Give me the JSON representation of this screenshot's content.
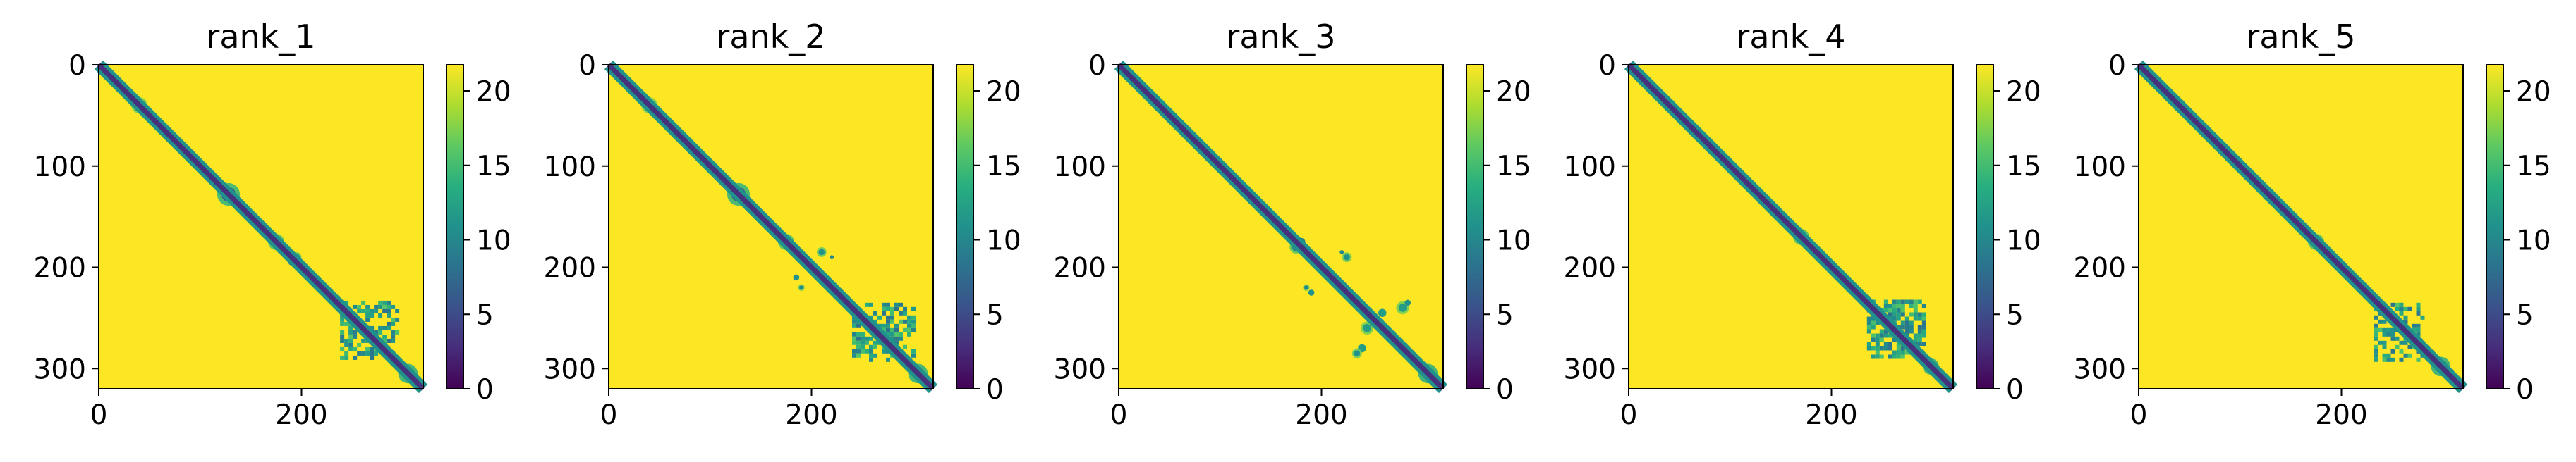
{
  "figure": {
    "colormap": "viridis",
    "background_color": "#ffffff"
  },
  "chart_data": [
    {
      "type": "heatmap",
      "title": "rank_1",
      "xlim": [
        0,
        320
      ],
      "ylim": [
        320,
        0
      ],
      "x_ticks": [
        0,
        200
      ],
      "x_tick_labels": [
        "0",
        "200"
      ],
      "y_ticks": [
        0,
        100,
        200,
        300
      ],
      "y_tick_labels": [
        "0",
        "100",
        "200",
        "300"
      ],
      "colorbar": {
        "range": [
          0,
          21.75
        ],
        "ticks": [
          0,
          5,
          10,
          15,
          20
        ],
        "tick_labels": [
          "0",
          "5",
          "10",
          "15",
          "20"
        ]
      },
      "background_value": 21.75,
      "diagonal_value": 3,
      "diagonal_band_width": 5,
      "features": [
        {
          "type": "blob",
          "center": [
            40,
            40
          ],
          "radius": 5,
          "value": 12
        },
        {
          "type": "blob",
          "center": [
            65,
            65
          ],
          "radius": 3,
          "value": 8
        },
        {
          "type": "blob",
          "center": [
            92,
            92
          ],
          "radius": 3,
          "value": 7
        },
        {
          "type": "blob",
          "center": [
            128,
            128
          ],
          "radius": 7,
          "value": 6
        },
        {
          "type": "blob",
          "center": [
            175,
            175
          ],
          "radius": 5,
          "value": 9
        },
        {
          "type": "blob",
          "center": [
            195,
            190
          ],
          "radius": 3,
          "value": 7
        },
        {
          "type": "block",
          "x": [
            238,
            295
          ],
          "y": [
            233,
            290
          ],
          "value": 12,
          "fill": 0.55
        },
        {
          "type": "blob",
          "center": [
            305,
            305
          ],
          "radius": 6,
          "value": 5
        }
      ]
    },
    {
      "type": "heatmap",
      "title": "rank_2",
      "xlim": [
        0,
        320
      ],
      "ylim": [
        320,
        0
      ],
      "x_ticks": [
        0,
        200
      ],
      "x_tick_labels": [
        "0",
        "200"
      ],
      "y_ticks": [
        0,
        100,
        200,
        300
      ],
      "y_tick_labels": [
        "0",
        "100",
        "200",
        "300"
      ],
      "colorbar": {
        "range": [
          0,
          21.75
        ],
        "ticks": [
          0,
          5,
          10,
          15,
          20
        ],
        "tick_labels": [
          "0",
          "5",
          "10",
          "15",
          "20"
        ]
      },
      "background_value": 21.75,
      "diagonal_value": 3,
      "diagonal_band_width": 5,
      "features": [
        {
          "type": "blob",
          "center": [
            40,
            40
          ],
          "radius": 5,
          "value": 12
        },
        {
          "type": "blob",
          "center": [
            128,
            128
          ],
          "radius": 7,
          "value": 6
        },
        {
          "type": "blob",
          "center": [
            175,
            175
          ],
          "radius": 5,
          "value": 9
        },
        {
          "type": "blob",
          "center": [
            210,
            185
          ],
          "radius": 3,
          "value": 11
        },
        {
          "type": "blob",
          "center": [
            190,
            220
          ],
          "radius": 2,
          "value": 10
        },
        {
          "type": "block",
          "x": [
            240,
            300
          ],
          "y": [
            235,
            290
          ],
          "value": 12,
          "fill": 0.55
        },
        {
          "type": "blob",
          "center": [
            305,
            305
          ],
          "radius": 6,
          "value": 5
        }
      ]
    },
    {
      "type": "heatmap",
      "title": "rank_3",
      "xlim": [
        0,
        320
      ],
      "ylim": [
        320,
        0
      ],
      "x_ticks": [
        0,
        200
      ],
      "x_tick_labels": [
        "0",
        "200"
      ],
      "y_ticks": [
        0,
        100,
        200,
        300
      ],
      "y_tick_labels": [
        "0",
        "100",
        "200",
        "300"
      ],
      "colorbar": {
        "range": [
          0,
          21.75
        ],
        "ticks": [
          0,
          5,
          10,
          15,
          20
        ],
        "tick_labels": [
          "0",
          "5",
          "10",
          "15",
          "20"
        ]
      },
      "background_value": 21.75,
      "diagonal_value": 3,
      "diagonal_band_width": 5,
      "features": [
        {
          "type": "blob",
          "center": [
            40,
            40
          ],
          "radius": 4,
          "value": 12
        },
        {
          "type": "blob",
          "center": [
            125,
            125
          ],
          "radius": 4,
          "value": 10
        },
        {
          "type": "blob",
          "center": [
            175,
            180
          ],
          "radius": 4,
          "value": 9
        },
        {
          "type": "blob",
          "center": [
            225,
            190
          ],
          "radius": 3,
          "value": 11
        },
        {
          "type": "blob",
          "center": [
            185,
            220
          ],
          "radius": 2,
          "value": 10
        },
        {
          "type": "blob",
          "center": [
            280,
            240
          ],
          "radius": 4,
          "value": 12
        },
        {
          "type": "blob",
          "center": [
            245,
            260
          ],
          "radius": 4,
          "value": 12
        },
        {
          "type": "blob",
          "center": [
            235,
            285
          ],
          "radius": 3,
          "value": 11
        },
        {
          "type": "blob",
          "center": [
            305,
            305
          ],
          "radius": 6,
          "value": 5
        }
      ]
    },
    {
      "type": "heatmap",
      "title": "rank_4",
      "xlim": [
        0,
        320
      ],
      "ylim": [
        320,
        0
      ],
      "x_ticks": [
        0,
        200
      ],
      "x_tick_labels": [
        "0",
        "200"
      ],
      "y_ticks": [
        0,
        100,
        200,
        300
      ],
      "y_tick_labels": [
        "0",
        "100",
        "200",
        "300"
      ],
      "colorbar": {
        "range": [
          0,
          21.75
        ],
        "ticks": [
          0,
          5,
          10,
          15,
          20
        ],
        "tick_labels": [
          "0",
          "5",
          "10",
          "15",
          "20"
        ]
      },
      "background_value": 21.75,
      "diagonal_value": 3,
      "diagonal_band_width": 5,
      "features": [
        {
          "type": "blob",
          "center": [
            40,
            40
          ],
          "radius": 4,
          "value": 12
        },
        {
          "type": "blob",
          "center": [
            170,
            170
          ],
          "radius": 5,
          "value": 9
        },
        {
          "type": "block",
          "x": [
            235,
            292
          ],
          "y": [
            232,
            290
          ],
          "value": 12,
          "fill": 0.6
        },
        {
          "type": "blob",
          "center": [
            298,
            298
          ],
          "radius": 5,
          "value": 5
        }
      ]
    },
    {
      "type": "heatmap",
      "title": "rank_5",
      "xlim": [
        0,
        320
      ],
      "ylim": [
        320,
        0
      ],
      "x_ticks": [
        0,
        200
      ],
      "x_tick_labels": [
        "0",
        "200"
      ],
      "y_ticks": [
        0,
        100,
        200,
        300
      ],
      "y_tick_labels": [
        "0",
        "100",
        "200",
        "300"
      ],
      "colorbar": {
        "range": [
          0,
          21.75
        ],
        "ticks": [
          0,
          5,
          10,
          15,
          20
        ],
        "tick_labels": [
          "0",
          "5",
          "10",
          "15",
          "20"
        ]
      },
      "background_value": 21.75,
      "diagonal_value": 3,
      "diagonal_band_width": 5,
      "features": [
        {
          "type": "blob",
          "center": [
            40,
            40
          ],
          "radius": 4,
          "value": 12
        },
        {
          "type": "blob",
          "center": [
            128,
            128
          ],
          "radius": 4,
          "value": 8
        },
        {
          "type": "blob",
          "center": [
            175,
            175
          ],
          "radius": 5,
          "value": 9
        },
        {
          "type": "block",
          "x": [
            232,
            280
          ],
          "y": [
            235,
            290
          ],
          "value": 12,
          "fill": 0.5
        },
        {
          "type": "blob",
          "center": [
            298,
            298
          ],
          "radius": 6,
          "value": 5
        }
      ]
    }
  ]
}
